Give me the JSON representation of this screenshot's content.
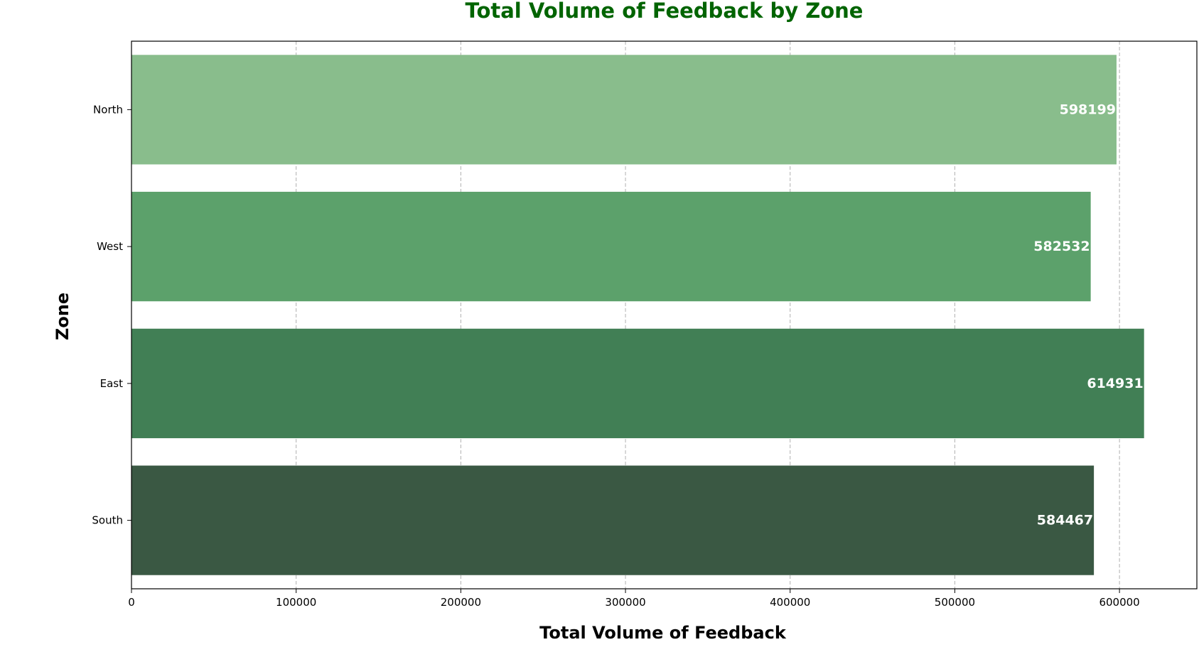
{
  "chart_data": {
    "type": "bar",
    "orientation": "horizontal",
    "title": "Total Volume of Feedback by Zone",
    "xlabel": "Total Volume of Feedback",
    "ylabel": "Zone",
    "categories": [
      "North",
      "West",
      "East",
      "South"
    ],
    "values": [
      598199,
      582532,
      614931,
      584467
    ],
    "data_labels": [
      "598199",
      "582532",
      "614931",
      "584467"
    ],
    "xlim": [
      0,
      647000
    ],
    "x_ticks": [
      0,
      100000,
      200000,
      300000,
      400000,
      500000,
      600000
    ],
    "x_tick_labels": [
      "0",
      "100000",
      "200000",
      "300000",
      "400000",
      "500000",
      "600000"
    ],
    "grid": "x-dashed",
    "colors": {
      "title": "#006400",
      "bars": [
        "#89bd8c",
        "#5ca16b",
        "#417f55",
        "#3a5843"
      ],
      "bar_label": "#ffffff",
      "grid": "#b0b0b0"
    }
  }
}
